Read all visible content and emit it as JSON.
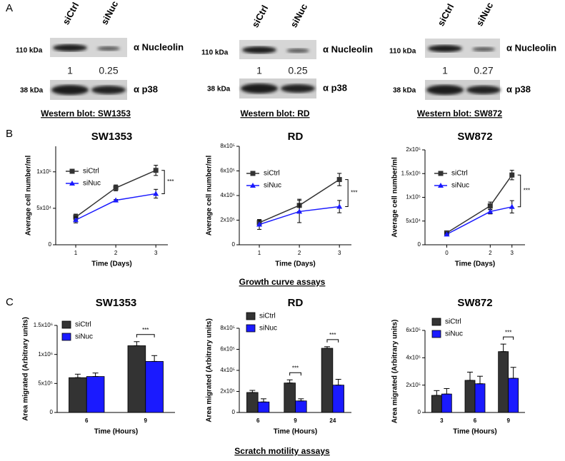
{
  "panel_labels": [
    "A",
    "B",
    "C"
  ],
  "section_captions": [
    "Growth curve assays",
    "Scratch motility assays"
  ],
  "western_blots": [
    {
      "lanes": [
        "siCtrl",
        "siNuc"
      ],
      "nucleolin_size": "110 kDa",
      "nucleolin_label": "α Nucleolin",
      "quantification": [
        1,
        0.25
      ],
      "p38_size": "38 kDa",
      "p38_label": "α p38",
      "caption": "Western blot: SW1353"
    },
    {
      "lanes": [
        "siCtrl",
        "siNuc"
      ],
      "nucleolin_size": "110 kDa",
      "nucleolin_label": "α Nucleolin",
      "quantification": [
        1,
        0.25
      ],
      "p38_size": "38 kDa",
      "p38_label": "α p38",
      "caption": "Western blot: RD"
    },
    {
      "lanes": [
        "siCtrl",
        "siNuc"
      ],
      "nucleolin_size": "110 kDa",
      "nucleolin_label": "α Nucleolin",
      "quantification": [
        1,
        0.27
      ],
      "p38_size": "38 kDa",
      "p38_label": "α p38",
      "caption": "Western blot: SW872"
    }
  ],
  "chart_data": [
    {
      "type": "line",
      "title": "SW1353",
      "x_label": "Time (Days)",
      "y_label": "Average cell number/ml",
      "x": [
        1,
        2,
        3
      ],
      "xlim": [
        0.5,
        3.3
      ],
      "xticks": [
        1,
        2,
        3
      ],
      "ylim": [
        0,
        135000
      ],
      "yticks": [
        0,
        {
          "value": 50000,
          "label": "5x10⁴"
        },
        {
          "value": 100000,
          "label": "1x10⁵"
        }
      ],
      "series": [
        {
          "name": "siCtrl",
          "color": "#333333",
          "marker": "square",
          "values": [
            38000,
            78000,
            102000
          ],
          "errors": [
            4000,
            4000,
            7000
          ]
        },
        {
          "name": "siNuc",
          "color": "#1a1aff",
          "marker": "triangle",
          "values": [
            34000,
            61000,
            70000
          ],
          "errors": [
            4000,
            1000,
            6000
          ]
        }
      ],
      "significance_labels": [
        null,
        null,
        "***"
      ]
    },
    {
      "type": "line",
      "title": "RD",
      "x_label": "Time (Days)",
      "y_label": "Average cell number/ml",
      "x": [
        1,
        2,
        3
      ],
      "xlim": [
        0.5,
        3.3
      ],
      "xticks": [
        1,
        2,
        3
      ],
      "ylim": [
        0,
        800000
      ],
      "yticks": [
        0,
        {
          "value": 200000,
          "label": "2x10⁵"
        },
        {
          "value": 400000,
          "label": "4x10⁵"
        },
        {
          "value": 600000,
          "label": "6x10⁵"
        },
        {
          "value": 800000,
          "label": "8x10⁵"
        }
      ],
      "series": [
        {
          "name": "siCtrl",
          "color": "#333333",
          "marker": "square",
          "values": [
            180000,
            320000,
            530000
          ],
          "errors": [
            20000,
            50000,
            50000
          ]
        },
        {
          "name": "siNuc",
          "color": "#1a1aff",
          "marker": "triangle",
          "values": [
            165000,
            270000,
            310000
          ],
          "errors": [
            40000,
            90000,
            50000
          ]
        }
      ],
      "significance_labels": [
        null,
        null,
        "***"
      ]
    },
    {
      "type": "line",
      "title": "SW872",
      "x_label": "Time (Days)",
      "y_label": "Average cell number/ml",
      "x": [
        0,
        2,
        3
      ],
      "xlim": [
        -1,
        3.6
      ],
      "xticks": [
        0,
        2,
        3
      ],
      "ylim": [
        0,
        200000
      ],
      "yticks": [
        0,
        {
          "value": 50000,
          "label": "5x10⁴"
        },
        {
          "value": 100000,
          "label": "1x10⁵"
        },
        {
          "value": 150000,
          "label": "1.5x10⁵"
        },
        {
          "value": 200000,
          "label": "2x10⁵"
        }
      ],
      "series": [
        {
          "name": "siCtrl",
          "color": "#333333",
          "marker": "square",
          "values": [
            25000,
            82000,
            147000
          ],
          "errors": [
            3000,
            8000,
            10000
          ]
        },
        {
          "name": "siNuc",
          "color": "#1a1aff",
          "marker": "triangle",
          "values": [
            22000,
            70000,
            80000
          ],
          "errors": [
            3000,
            5000,
            13000
          ]
        }
      ],
      "significance_labels": [
        null,
        null,
        "***"
      ]
    },
    {
      "type": "bar",
      "title": "SW1353",
      "x_label": "Time (Hours)",
      "y_label": "Area migrated (Arbitrary units)",
      "categories": [
        "6",
        "9"
      ],
      "ylim": [
        0,
        1500000
      ],
      "yticks": [
        0,
        {
          "value": 500000,
          "label": "5x10⁵"
        },
        {
          "value": 1000000,
          "label": "1x10⁶"
        },
        {
          "value": 1500000,
          "label": "1.5x10⁶"
        }
      ],
      "series": [
        {
          "name": "siCtrl",
          "color": "#333333",
          "values": [
            600000,
            1150000
          ],
          "errors": [
            60000,
            70000
          ]
        },
        {
          "name": "siNuc",
          "color": "#1a1aff",
          "values": [
            620000,
            880000
          ],
          "errors": [
            60000,
            100000
          ]
        }
      ],
      "significance_labels": [
        null,
        "***"
      ]
    },
    {
      "type": "bar",
      "title": "RD",
      "x_label": "Time (Hours)",
      "y_label": "Area migrated (Arbitrary units)",
      "categories": [
        "6",
        "9",
        "24"
      ],
      "ylim": [
        0,
        800000
      ],
      "yticks": [
        0,
        {
          "value": 200000,
          "label": "2x10⁵"
        },
        {
          "value": 400000,
          "label": "4x10⁵"
        },
        {
          "value": 600000,
          "label": "6x10⁵"
        },
        {
          "value": 800000,
          "label": "8x10⁵"
        }
      ],
      "series": [
        {
          "name": "siCtrl",
          "color": "#333333",
          "values": [
            190000,
            280000,
            610000
          ],
          "errors": [
            20000,
            30000,
            15000
          ]
        },
        {
          "name": "siNuc",
          "color": "#1a1aff",
          "values": [
            100000,
            110000,
            260000
          ],
          "errors": [
            30000,
            20000,
            55000
          ]
        }
      ],
      "significance_labels": [
        null,
        "***",
        "***"
      ]
    },
    {
      "type": "bar",
      "title": "SW872",
      "x_label": "Time (Hours)",
      "y_label": "Area migrated (Arbitrary units)",
      "categories": [
        "3",
        "6",
        "9"
      ],
      "ylim": [
        0,
        600000
      ],
      "yticks": [
        0,
        {
          "value": 200000,
          "label": "2x10⁵"
        },
        {
          "value": 400000,
          "label": "4x10⁵"
        },
        {
          "value": 600000,
          "label": "6x10⁵"
        }
      ],
      "series": [
        {
          "name": "siCtrl",
          "color": "#333333",
          "values": [
            125000,
            235000,
            445000
          ],
          "errors": [
            35000,
            60000,
            55000
          ]
        },
        {
          "name": "siNuc",
          "color": "#1a1aff",
          "values": [
            135000,
            210000,
            250000
          ],
          "errors": [
            40000,
            55000,
            80000
          ]
        }
      ],
      "significance_labels": [
        null,
        null,
        "***"
      ]
    }
  ]
}
